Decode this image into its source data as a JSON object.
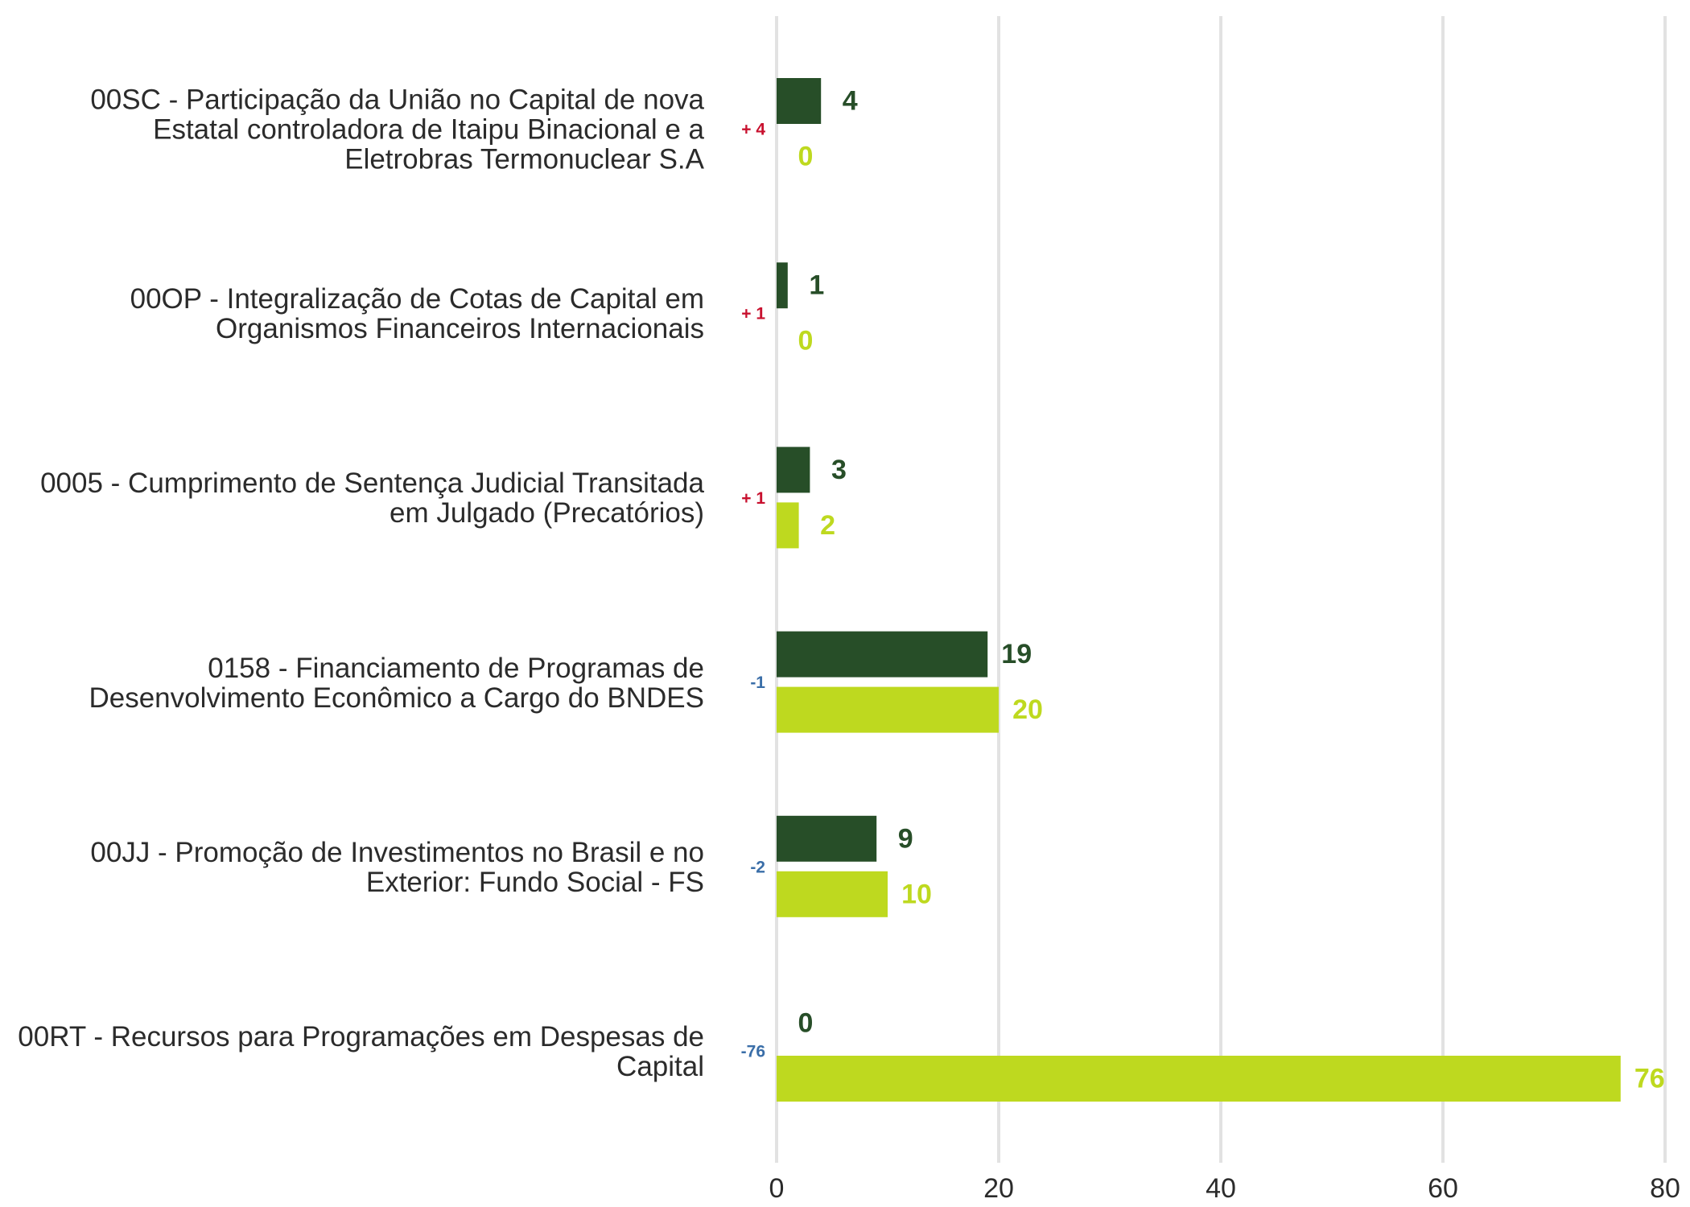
{
  "chart_data": {
    "type": "bar",
    "orientation": "horizontal",
    "categories": [
      "00SC - Participação da União no Capital de nova Estatal controladora de Itaipu Binacional e a Eletrobras Termonuclear S.A",
      "00OP - Integralização de Cotas de Capital em Organismos Financeiros Internacionais",
      "0005 - Cumprimento de Sentença Judicial Transitada em Julgado (Precatórios)",
      "0158 - Financiamento de Programas de Desenvolvimento Econômico a Cargo do BNDES",
      "00JJ - Promoção de Investimentos no Brasil e no Exterior: Fundo Social - FS",
      "00RT - Recursos para Programações em Despesas de Capital"
    ],
    "series": [
      {
        "values": [
          4,
          1,
          3,
          19,
          9,
          0
        ],
        "color": "#274e28"
      },
      {
        "values": [
          0,
          0,
          2,
          20,
          10,
          76
        ],
        "color": "#bed91f"
      }
    ],
    "differences": [
      "+ 4",
      "+ 1",
      "+ 1",
      "-1",
      "-2",
      "-76"
    ],
    "difference_colors": {
      "positive": "#c8102e",
      "negative": "#3a6ea8"
    },
    "xlim": [
      0,
      80
    ],
    "xticks": [
      0,
      20,
      40,
      60,
      80
    ],
    "grid": true,
    "grid_color": "#e2e2e2",
    "legend": "none"
  }
}
